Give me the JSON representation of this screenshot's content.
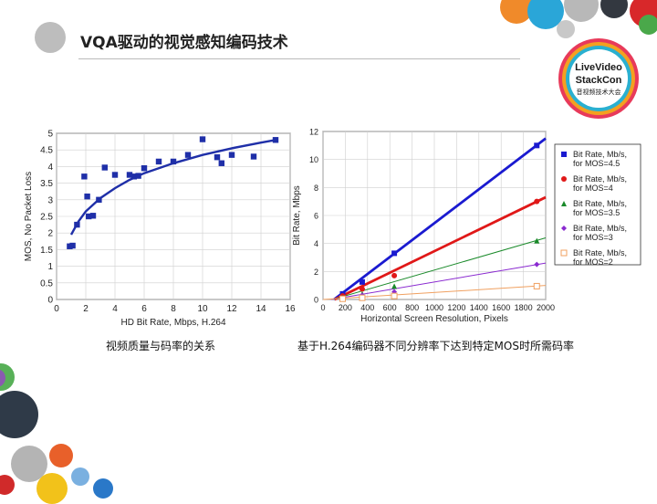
{
  "slide": {
    "title": "VQA驱动的视觉感知编码技术",
    "caption_left": "视频质量与码率的关系",
    "caption_right": "基于H.264编码器不同分辨率下达到特定MOS时所需码率"
  },
  "logo": {
    "line1": "LiveVideo",
    "line2": "StackCon",
    "line3": "音视频技术大会"
  },
  "colors": {
    "chart_blue": "#1f2fa8",
    "mos45": "#1a1ad0",
    "mos4": "#e01818",
    "mos35": "#1a8a2a",
    "mos3": "#8a2ad0",
    "mos2": "#f0a060"
  },
  "chart_data": [
    {
      "type": "scatter",
      "title": "",
      "xlabel": "HD Bit Rate, Mbps, H.264",
      "ylabel": "MOS, No Packet Loss",
      "xlim": [
        0,
        16
      ],
      "ylim": [
        0,
        5
      ],
      "x_ticks": [
        "0",
        "2",
        "4",
        "6",
        "8",
        "10",
        "12",
        "14",
        "16"
      ],
      "y_ticks": [
        "0",
        "0.5",
        "1",
        "1.5",
        "2",
        "2.5",
        "3",
        "3.5",
        "4",
        "4.5",
        "5"
      ],
      "grid": true,
      "points": [
        {
          "x": 0.9,
          "y": 1.6
        },
        {
          "x": 1.1,
          "y": 1.62
        },
        {
          "x": 1.4,
          "y": 2.25
        },
        {
          "x": 1.9,
          "y": 3.7
        },
        {
          "x": 2.1,
          "y": 3.1
        },
        {
          "x": 2.2,
          "y": 2.5
        },
        {
          "x": 2.5,
          "y": 2.52
        },
        {
          "x": 2.9,
          "y": 3.0
        },
        {
          "x": 3.3,
          "y": 3.97
        },
        {
          "x": 4.0,
          "y": 3.75
        },
        {
          "x": 5.0,
          "y": 3.75
        },
        {
          "x": 5.3,
          "y": 3.7
        },
        {
          "x": 5.6,
          "y": 3.72
        },
        {
          "x": 6.0,
          "y": 3.95
        },
        {
          "x": 7.0,
          "y": 4.15
        },
        {
          "x": 8.0,
          "y": 4.15
        },
        {
          "x": 9.0,
          "y": 4.35
        },
        {
          "x": 10.0,
          "y": 4.82
        },
        {
          "x": 11.0,
          "y": 4.28
        },
        {
          "x": 11.3,
          "y": 4.1
        },
        {
          "x": 12.0,
          "y": 4.35
        },
        {
          "x": 13.5,
          "y": 4.3
        },
        {
          "x": 15.0,
          "y": 4.8
        }
      ],
      "fit_curve": {
        "x": [
          1.0,
          1.5,
          2,
          3,
          4,
          5,
          6,
          8,
          10,
          12,
          14,
          15
        ],
        "y": [
          1.95,
          2.35,
          2.65,
          3.05,
          3.35,
          3.6,
          3.8,
          4.1,
          4.35,
          4.55,
          4.72,
          4.8
        ]
      }
    },
    {
      "type": "line",
      "title": "",
      "xlabel": "Horizontal Screen Resolution, Pixels",
      "ylabel": "Bit Rate, Mbps",
      "xlim": [
        0,
        2000
      ],
      "ylim": [
        0,
        12
      ],
      "x_ticks": [
        "0",
        "200",
        "400",
        "600",
        "800",
        "1000",
        "1200",
        "1400",
        "1600",
        "1800",
        "2000"
      ],
      "y_ticks": [
        "0",
        "2",
        "4",
        "6",
        "8",
        "10",
        "12"
      ],
      "grid": true,
      "legend_position": "right",
      "series": [
        {
          "name": "Bit Rate, Mb/s, for MOS=4.5",
          "marker": "square",
          "color_key": "mos45",
          "x": [
            176,
            352,
            640,
            1920
          ],
          "y": [
            0.4,
            1.25,
            3.3,
            11.0
          ],
          "line": {
            "x": [
              0,
              2000
            ],
            "y": [
              -0.6,
              11.5
            ]
          }
        },
        {
          "name": "Bit Rate, Mb/s, for MOS=4",
          "marker": "circle",
          "color_key": "mos4",
          "x": [
            176,
            352,
            640,
            1920
          ],
          "y": [
            0.25,
            0.75,
            1.7,
            7.0
          ],
          "line": {
            "x": [
              0,
              2000
            ],
            "y": [
              -0.4,
              7.3
            ]
          }
        },
        {
          "name": "Bit Rate, Mb/s, for MOS=3.5",
          "marker": "triangle",
          "color_key": "mos35",
          "x": [
            176,
            352,
            640,
            1920
          ],
          "y": [
            0.15,
            0.4,
            0.95,
            4.2
          ],
          "line": {
            "x": [
              0,
              2000
            ],
            "y": [
              -0.2,
              4.4
            ]
          }
        },
        {
          "name": "Bit Rate, Mb/s, for MOS=3",
          "marker": "diamond",
          "color_key": "mos3",
          "x": [
            176,
            352,
            640,
            1920
          ],
          "y": [
            0.1,
            0.3,
            0.55,
            2.5
          ],
          "line": {
            "x": [
              0,
              2000
            ],
            "y": [
              -0.1,
              2.6
            ]
          }
        },
        {
          "name": "Bit Rate, Mb/s, for MOS=2",
          "marker": "open-square",
          "color_key": "mos2",
          "x": [
            176,
            352,
            640,
            1920
          ],
          "y": [
            0.05,
            0.12,
            0.25,
            0.95
          ],
          "line": {
            "x": [
              0,
              2000
            ],
            "y": [
              0.0,
              1.0
            ]
          }
        }
      ]
    }
  ]
}
